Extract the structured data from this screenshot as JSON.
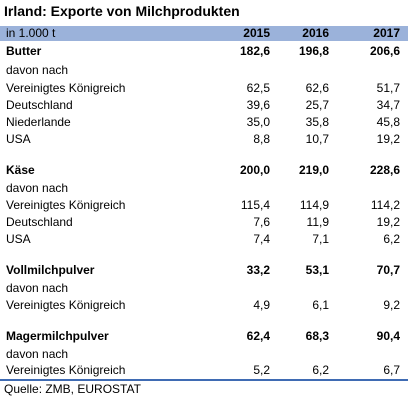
{
  "title": "Irland: Exporte von Milchprodukten",
  "header": {
    "unit": "in 1.000 t",
    "years": [
      "2015",
      "2016",
      "2017"
    ]
  },
  "sections": [
    {
      "name": "Butter",
      "values": [
        "182,6",
        "196,8",
        "206,6"
      ],
      "sub_label": "davon nach",
      "rows": [
        {
          "label": "Vereinigtes Königreich",
          "values": [
            "62,5",
            "62,6",
            "51,7"
          ]
        },
        {
          "label": "Deutschland",
          "values": [
            "39,6",
            "25,7",
            "34,7"
          ]
        },
        {
          "label": "Niederlande",
          "values": [
            "35,0",
            "35,8",
            "45,8"
          ]
        },
        {
          "label": "USA",
          "values": [
            "8,8",
            "10,7",
            "19,2"
          ]
        }
      ]
    },
    {
      "name": "Käse",
      "values": [
        "200,0",
        "219,0",
        "228,6"
      ],
      "sub_label": "davon nach",
      "rows": [
        {
          "label": "Vereinigtes Königreich",
          "values": [
            "115,4",
            "114,9",
            "114,2"
          ]
        },
        {
          "label": "Deutschland",
          "values": [
            "7,6",
            "11,9",
            "19,2"
          ]
        },
        {
          "label": "USA",
          "values": [
            "7,4",
            "7,1",
            "6,2"
          ]
        }
      ]
    },
    {
      "name": "Vollmilchpulver",
      "values": [
        "33,2",
        "53,1",
        "70,7"
      ],
      "sub_label": "davon nach",
      "rows": [
        {
          "label": "Vereinigtes Königreich",
          "values": [
            "4,9",
            "6,1",
            "9,2"
          ]
        }
      ]
    },
    {
      "name": "Magermilchpulver",
      "values": [
        "62,4",
        "68,3",
        "90,4"
      ],
      "sub_label": "davon nach",
      "rows": [
        {
          "label": "Vereinigtes Königreich",
          "values": [
            "5,2",
            "6,2",
            "6,7"
          ]
        }
      ]
    }
  ],
  "source": "Quelle: ZMB, EUROSTAT",
  "colors": {
    "header_bg": "#9bb2da",
    "rule": "#3f6bb3"
  }
}
